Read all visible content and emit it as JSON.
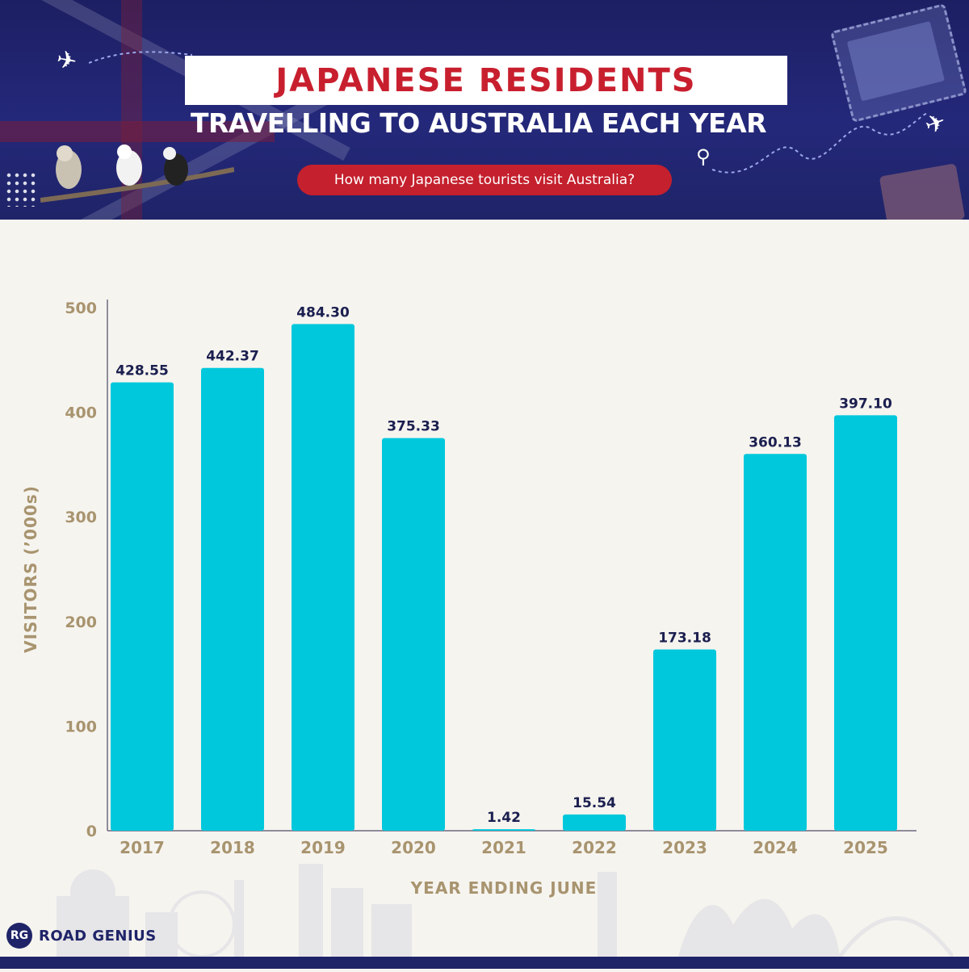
{
  "header": {
    "title_line1": "JAPANESE RESIDENTS",
    "title_line2": "TRAVELLING TO AUSTRALIA EACH YEAR",
    "subtitle": "How many Japanese tourists visit Australia?"
  },
  "brand": {
    "logo_initials": "RG",
    "name": "ROAD GENIUS"
  },
  "colors": {
    "bar": "#00c8dc",
    "axis_text": "#a8946f",
    "value_label": "#1b1f4f",
    "header_bg": "#1f2468",
    "title_red": "#c81f2e"
  },
  "chart_data": {
    "type": "bar",
    "categories": [
      "2017",
      "2018",
      "2019",
      "2020",
      "2021",
      "2022",
      "2023",
      "2024",
      "2025"
    ],
    "values": [
      428.55,
      442.37,
      484.3,
      375.33,
      1.42,
      15.54,
      173.18,
      360.13,
      397.1
    ],
    "value_labels": [
      "428.55",
      "442.37",
      "484.30",
      "375.33",
      "1.42",
      "15.54",
      "173.18",
      "360.13",
      "397.10"
    ],
    "xlabel": "YEAR ENDING JUNE",
    "ylabel": "VISITORS (’000s)",
    "ylim": [
      0,
      500
    ],
    "yticks": [
      0,
      100,
      200,
      300,
      400,
      500
    ],
    "grid": false,
    "legend": "none"
  }
}
